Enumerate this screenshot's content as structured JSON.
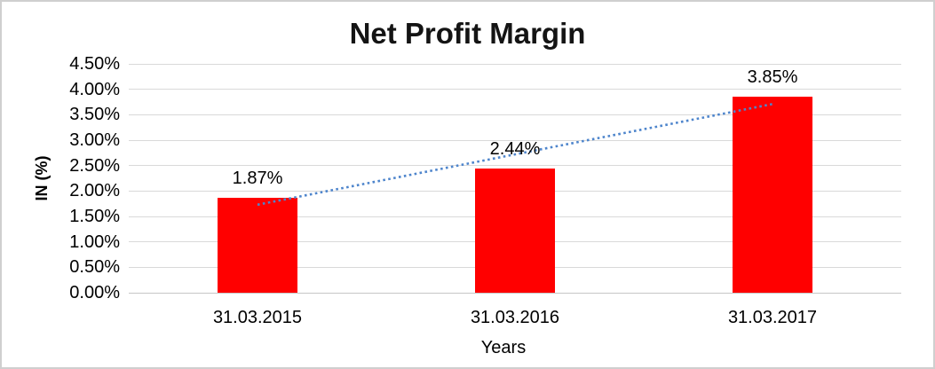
{
  "chart_data": {
    "type": "bar",
    "title": "Net Profit Margin",
    "categories": [
      "31.03.2015",
      "31.03.2016",
      "31.03.2017"
    ],
    "values": [
      1.87,
      2.44,
      3.85
    ],
    "data_labels": [
      "1.87%",
      "2.44%",
      "3.85%"
    ],
    "xlabel": "Years",
    "ylabel": "IN (%)",
    "ylim": [
      0,
      4.5
    ],
    "ytick_step": 0.5,
    "yticks": [
      "0.00%",
      "0.50%",
      "1.00%",
      "1.50%",
      "2.00%",
      "2.50%",
      "3.00%",
      "3.50%",
      "4.00%",
      "4.50%"
    ],
    "grid": true,
    "legend": "none",
    "bar_color": "#ff0000",
    "gridline_color": "#d9d9d9",
    "text_color": "#000000",
    "trendline": {
      "type": "linear",
      "style": "dotted",
      "color": "#4e85cc"
    }
  }
}
